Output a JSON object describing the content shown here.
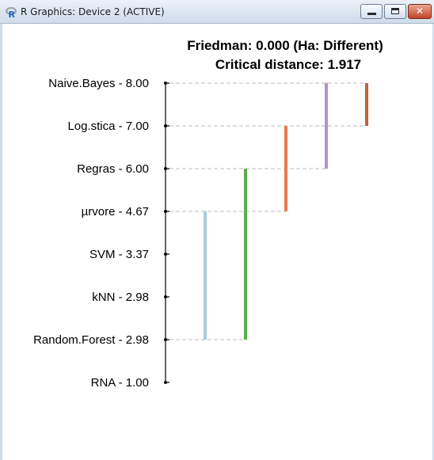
{
  "window": {
    "title": "R Graphics: Device 2 (ACTIVE)",
    "icon": "r-logo-icon",
    "controls": {
      "minimize": "minimize-icon",
      "maximize": "maximize-icon",
      "close": "close-icon",
      "close_glyph": "✕"
    }
  },
  "chart_data": {
    "type": "critical-difference",
    "title_line1": "Friedman: 0.000 (Ha: Different)",
    "title_line2": "Critical distance: 1.917",
    "ylim": [
      1,
      8
    ],
    "labels": [
      {
        "name": "Naive.Bayes",
        "rank": 8.0,
        "text": "Naive.Bayes - 8.00"
      },
      {
        "name": "Log.stica",
        "rank": 7.0,
        "text": "Log.stica - 7.00"
      },
      {
        "name": "Regras",
        "rank": 6.0,
        "text": "Regras - 6.00"
      },
      {
        "name": "µrvore",
        "rank": 4.67,
        "text": "µrvore - 4.67"
      },
      {
        "name": "SVM",
        "rank": 3.37,
        "text": "SVM - 3.37"
      },
      {
        "name": "kNN",
        "rank": 2.98,
        "text": "kNN - 2.98"
      },
      {
        "name": "Random.Forest",
        "rank": 2.98,
        "text": "Random.Forest - 2.98"
      },
      {
        "name": "RNA",
        "rank": 1.0,
        "text": "RNA - 1.00"
      }
    ],
    "groups": [
      {
        "from_rank": 2.98,
        "to_rank": 4.67,
        "color": "#a8cddb"
      },
      {
        "from_rank": 2.98,
        "to_rank": 6.0,
        "color": "#5cad4e"
      },
      {
        "from_rank": 4.67,
        "to_rank": 7.0,
        "color": "#ea7a52"
      },
      {
        "from_rank": 6.0,
        "to_rank": 8.0,
        "color": "#b394c4"
      },
      {
        "from_rank": 7.0,
        "to_rank": 8.0,
        "color": "#c0633a"
      }
    ],
    "dash_color": "#bbbbbb",
    "grid": false
  }
}
